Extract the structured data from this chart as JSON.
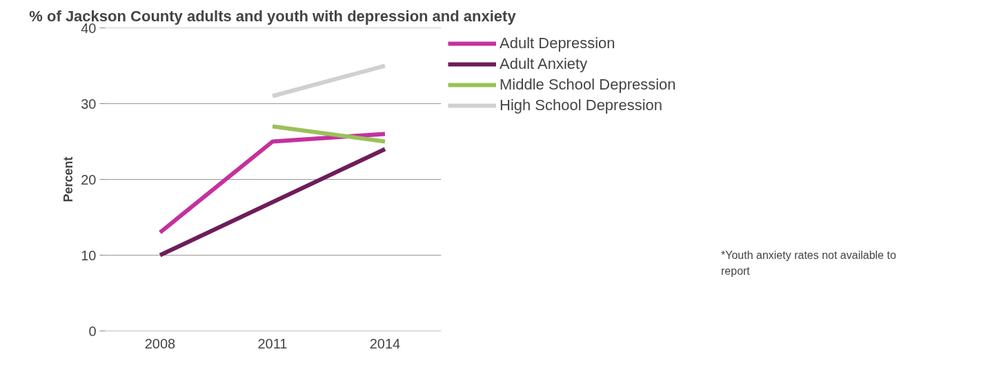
{
  "chart_data": {
    "type": "line",
    "title": "% of Jackson County adults and youth with depression and anxiety",
    "ylabel": "Percent",
    "categories": [
      "2008",
      "2011",
      "2014"
    ],
    "series": [
      {
        "name": "Adult Depression",
        "color": "#c4319f",
        "values": [
          13,
          25,
          26
        ]
      },
      {
        "name": "Adult Anxiety",
        "color": "#6e1d5a",
        "values": [
          10,
          17,
          24
        ]
      },
      {
        "name": "Middle School Depression",
        "color": "#9bc15a",
        "values": [
          null,
          27,
          25
        ]
      },
      {
        "name": "High School Depression",
        "color": "#d0d0d0",
        "values": [
          null,
          31,
          35
        ]
      }
    ],
    "ylim": [
      0,
      40
    ],
    "yticks": [
      0,
      10,
      20,
      30,
      40
    ],
    "grid": "y",
    "legend": "right",
    "marker": "none",
    "line_style": "solid",
    "annotations": [
      "*Youth anxiety rates not available to report"
    ]
  }
}
